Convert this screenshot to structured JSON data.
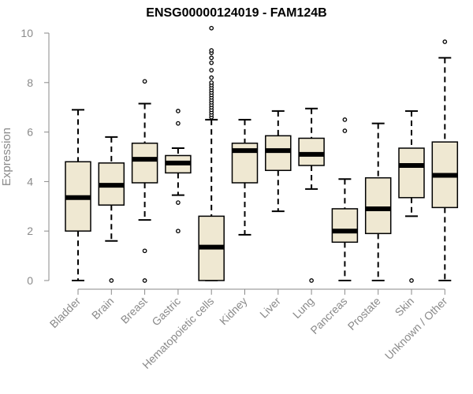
{
  "chart_data": {
    "type": "boxplot",
    "title": "ENSG00000124019 - FAM124B",
    "xlabel": "",
    "ylabel": "Expression",
    "ylim": [
      0,
      10
    ],
    "yticks": [
      0,
      2,
      4,
      6,
      8,
      10
    ],
    "grid": false,
    "colors": {
      "box_fill": "#efe8d2",
      "stroke": "#000000",
      "axis": "#8a8a8a"
    },
    "categories": [
      "Bladder",
      "Brain",
      "Breast",
      "Gastric",
      "Hematopoietic cells",
      "Kidney",
      "Liver",
      "Lung",
      "Pancreas",
      "Prostate",
      "Skin",
      "Unknown / Other"
    ],
    "boxes": [
      {
        "name": "Bladder",
        "whisker_low": 0.0,
        "q1": 2.0,
        "median": 3.35,
        "q3": 4.8,
        "whisker_high": 6.9,
        "outliers": []
      },
      {
        "name": "Brain",
        "whisker_low": 1.6,
        "q1": 3.05,
        "median": 3.85,
        "q3": 4.75,
        "whisker_high": 5.8,
        "outliers": [
          0.0
        ]
      },
      {
        "name": "Breast",
        "whisker_low": 2.45,
        "q1": 3.95,
        "median": 4.9,
        "q3": 5.55,
        "whisker_high": 7.15,
        "outliers": [
          0.0,
          1.2,
          8.05
        ]
      },
      {
        "name": "Gastric",
        "whisker_low": 3.45,
        "q1": 4.35,
        "median": 4.75,
        "q3": 5.05,
        "whisker_high": 5.35,
        "outliers": [
          2.0,
          3.15,
          6.35,
          6.85
        ]
      },
      {
        "name": "Hematopoietic cells",
        "whisker_low": 0.0,
        "q1": 0.0,
        "median": 1.35,
        "q3": 2.6,
        "whisker_high": 6.5,
        "outliers": [
          6.6,
          6.7,
          6.8,
          6.9,
          7.0,
          7.1,
          7.2,
          7.3,
          7.4,
          7.5,
          7.6,
          7.7,
          7.8,
          7.9,
          8.0,
          8.2,
          8.5,
          8.8,
          9.0,
          9.2,
          9.3,
          10.2
        ]
      },
      {
        "name": "Kidney",
        "whisker_low": 1.85,
        "q1": 3.95,
        "median": 5.25,
        "q3": 5.55,
        "whisker_high": 6.5,
        "outliers": []
      },
      {
        "name": "Liver",
        "whisker_low": 2.8,
        "q1": 4.45,
        "median": 5.25,
        "q3": 5.85,
        "whisker_high": 6.85,
        "outliers": []
      },
      {
        "name": "Lung",
        "whisker_low": 3.7,
        "q1": 4.65,
        "median": 5.1,
        "q3": 5.75,
        "whisker_high": 6.95,
        "outliers": [
          0.0
        ]
      },
      {
        "name": "Pancreas",
        "whisker_low": 0.0,
        "q1": 1.55,
        "median": 2.0,
        "q3": 2.9,
        "whisker_high": 4.1,
        "outliers": [
          6.05,
          6.5
        ]
      },
      {
        "name": "Prostate",
        "whisker_low": 0.0,
        "q1": 1.9,
        "median": 2.9,
        "q3": 4.15,
        "whisker_high": 6.35,
        "outliers": []
      },
      {
        "name": "Skin",
        "whisker_low": 2.6,
        "q1": 3.35,
        "median": 4.65,
        "q3": 5.35,
        "whisker_high": 6.85,
        "outliers": [
          0.0
        ]
      },
      {
        "name": "Unknown / Other",
        "whisker_low": 0.0,
        "q1": 2.95,
        "median": 4.25,
        "q3": 5.6,
        "whisker_high": 9.0,
        "outliers": [
          9.65
        ]
      }
    ]
  }
}
